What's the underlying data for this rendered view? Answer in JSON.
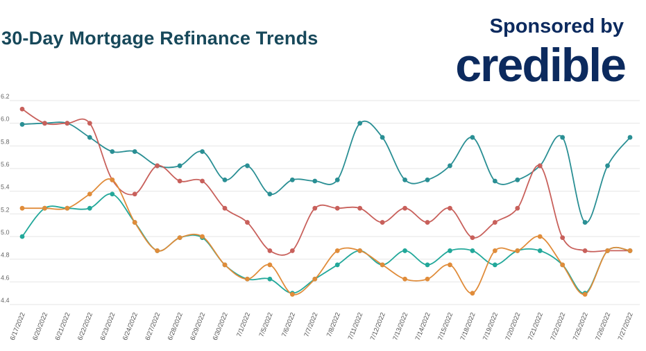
{
  "header": {
    "title": "30-Day Mortgage Refinance Trends",
    "sponsored_label": "Sponsored by",
    "brand": "credible"
  },
  "chart_data": {
    "type": "line",
    "title": "30-Day Mortgage Refinance Trends",
    "xlabel": "",
    "ylabel": "",
    "ylim": [
      4.4,
      6.2
    ],
    "yticks": [
      "4.4",
      "4.6",
      "4.8",
      "5.0",
      "5.2",
      "5.4",
      "5.6",
      "5.8",
      "6.0",
      "6.2"
    ],
    "grid": true,
    "categories": [
      "6/17/2022",
      "6/20/2022",
      "6/21/2022",
      "6/22/2022",
      "6/23/2022",
      "6/24/2022",
      "6/27/2022",
      "6/28/2022",
      "6/29/2022",
      "6/30/2022",
      "7/1/2022",
      "7/5/2022",
      "7/6/2022",
      "7/7/2022",
      "7/8/2022",
      "7/11/2022",
      "7/12/2022",
      "7/13/2022",
      "7/14/2022",
      "7/15/2022",
      "7/18/2022",
      "7/19/2022",
      "7/20/2022",
      "7/21/2022",
      "7/22/2022",
      "7/25/2022",
      "7/26/2022",
      "7/27/2022"
    ],
    "series": [
      {
        "color": "#2a8f94",
        "values": [
          5.99,
          6.0,
          6.0,
          5.875,
          5.75,
          5.75,
          5.625,
          5.625,
          5.75,
          5.5,
          5.625,
          5.375,
          5.5,
          5.49,
          5.5,
          6.0,
          5.875,
          5.5,
          5.5,
          5.625,
          5.875,
          5.49,
          5.5,
          5.625,
          5.875,
          5.125,
          5.625,
          5.875
        ]
      },
      {
        "color": "#c8605b",
        "values": [
          6.125,
          6.0,
          6.0,
          6.0,
          5.5,
          5.375,
          5.625,
          5.49,
          5.49,
          5.25,
          5.125,
          4.875,
          4.875,
          5.25,
          5.25,
          5.25,
          5.125,
          5.25,
          5.125,
          5.25,
          4.99,
          5.125,
          5.25,
          5.625,
          4.99,
          4.875,
          4.875,
          4.875
        ]
      },
      {
        "color": "#22a89a",
        "values": [
          5.0,
          5.25,
          5.25,
          5.25,
          5.375,
          5.125,
          4.875,
          4.99,
          4.99,
          4.75,
          4.625,
          4.625,
          4.5,
          4.625,
          4.75,
          4.875,
          4.75,
          4.875,
          4.75,
          4.875,
          4.875,
          4.75,
          4.875,
          4.875,
          4.75,
          4.5,
          4.875,
          4.875
        ]
      },
      {
        "color": "#e08c3a",
        "values": [
          5.25,
          5.25,
          5.25,
          5.375,
          5.5,
          5.125,
          4.875,
          4.99,
          5.0,
          4.75,
          4.625,
          4.75,
          4.49,
          4.625,
          4.875,
          4.875,
          4.75,
          4.625,
          4.625,
          4.75,
          4.5,
          4.875,
          4.875,
          5.0,
          4.75,
          4.49,
          4.875,
          4.875
        ]
      }
    ]
  }
}
